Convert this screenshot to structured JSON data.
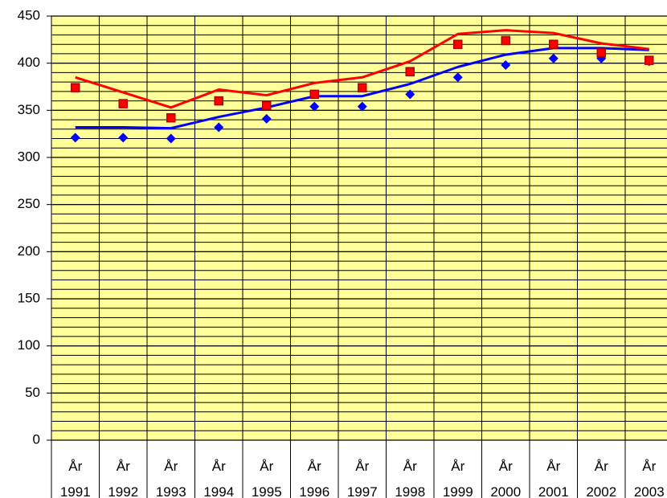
{
  "chart_data": {
    "type": "line",
    "categories": [
      "År 1991",
      "År 1992",
      "År 1993",
      "År 1994",
      "År 1995",
      "År 1996",
      "År 1997",
      "År 1998",
      "År 1999",
      "År 2000",
      "År 2001",
      "År 2002",
      "År 2003"
    ],
    "series": [
      {
        "color": "#0000ff",
        "style": "markers",
        "marker": "diamond",
        "values": [
          321,
          321,
          320,
          332,
          341,
          354,
          354,
          367,
          385,
          398,
          405,
          405,
          402
        ]
      },
      {
        "color": "#0000ff",
        "style": "line",
        "values": [
          332,
          332,
          331,
          343,
          353,
          365,
          365,
          378,
          396,
          409,
          416,
          416,
          414
        ]
      },
      {
        "color": "#ff0000",
        "style": "markers",
        "marker": "square",
        "values": [
          374,
          357,
          342,
          360,
          355,
          367,
          374,
          391,
          420,
          424,
          420,
          411,
          403
        ]
      },
      {
        "color": "#ff0000",
        "style": "line",
        "values": [
          385,
          369,
          353,
          372,
          366,
          379,
          385,
          402,
          431,
          435,
          432,
          421,
          415
        ]
      }
    ],
    "ylim": [
      0,
      450
    ],
    "yticks": [
      0,
      50,
      100,
      150,
      200,
      250,
      300,
      350,
      400,
      450
    ],
    "grid": true,
    "minor_grid_step": 10,
    "plot_background": "#ffff99"
  }
}
